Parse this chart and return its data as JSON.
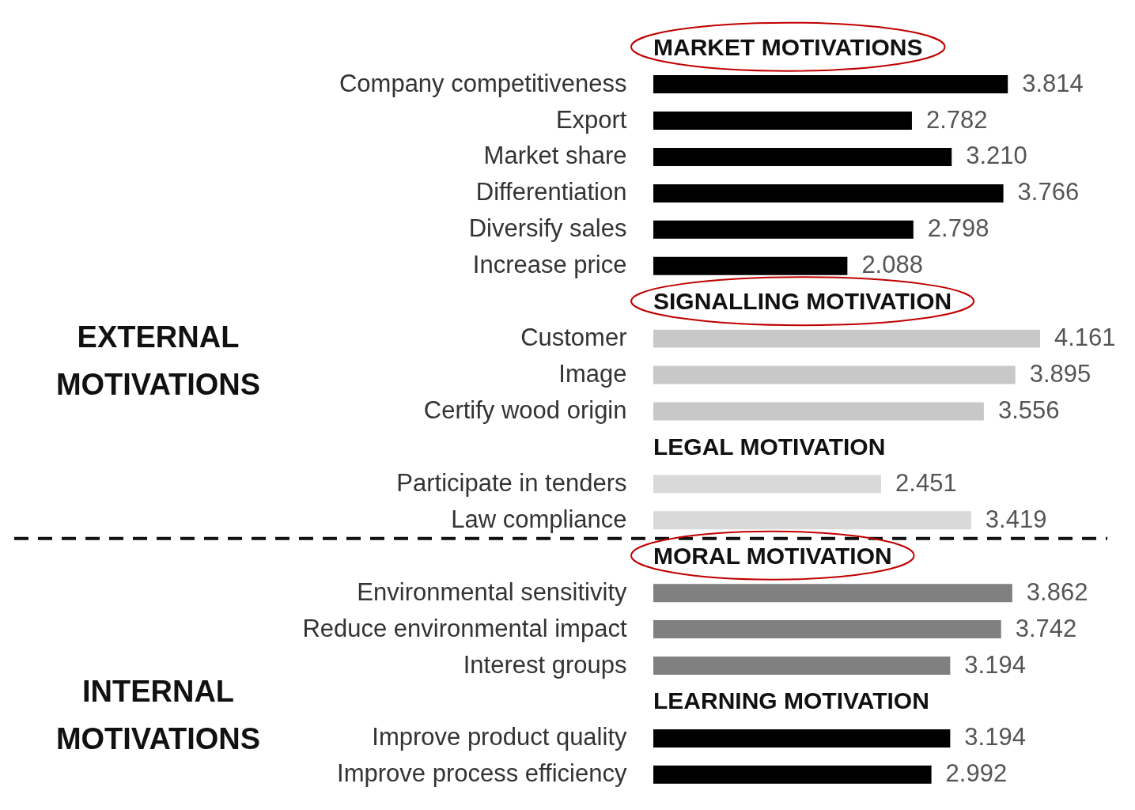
{
  "chart_data": {
    "type": "bar",
    "orientation": "horizontal",
    "categories": [
      "Company competitiveness",
      "Export",
      "Market share",
      "Differentiation",
      "Diversify sales",
      "Increase price",
      "Customer",
      "Image",
      "Certify wood origin",
      "Participate in tenders",
      "Law compliance",
      "Environmental sensitivity",
      "Reduce environmental impact",
      "Interest groups",
      "Improve product quality",
      "Improve process efficiency"
    ],
    "series": [
      {
        "name": "MARKET MOTIVATIONS",
        "color": "#000000",
        "values": [
          3.814,
          2.782,
          3.21,
          3.766,
          2.798,
          2.088,
          null,
          null,
          null,
          null,
          null,
          null,
          null,
          null,
          null,
          null
        ],
        "value_labels": [
          "3.814",
          "2.782",
          "3.210",
          "3.766",
          "2.798",
          "2.088",
          null,
          null,
          null,
          null,
          null,
          null,
          null,
          null,
          null,
          null
        ]
      },
      {
        "name": "SIGNALLING MOTIVATION",
        "color": "#c8c8c8",
        "values": [
          null,
          null,
          null,
          null,
          null,
          null,
          4.161,
          3.895,
          3.556,
          null,
          null,
          null,
          null,
          null,
          null,
          null
        ],
        "value_labels": [
          null,
          null,
          null,
          null,
          null,
          null,
          "4.161",
          "3.895",
          "3.556",
          null,
          null,
          null,
          null,
          null,
          null,
          null
        ]
      },
      {
        "name": "LEGAL MOTIVATION",
        "color": "#d9d9d9",
        "values": [
          null,
          null,
          null,
          null,
          null,
          null,
          null,
          null,
          null,
          2.451,
          3.419,
          null,
          null,
          null,
          null,
          null
        ],
        "value_labels": [
          null,
          null,
          null,
          null,
          null,
          null,
          null,
          null,
          null,
          "2.451",
          "3.419",
          null,
          null,
          null,
          null,
          null
        ]
      },
      {
        "name": "MORAL MOTIVATION",
        "color": "#808080",
        "values": [
          null,
          null,
          null,
          null,
          null,
          null,
          null,
          null,
          null,
          null,
          null,
          3.862,
          3.742,
          3.194,
          null,
          null
        ],
        "value_labels": [
          null,
          null,
          null,
          null,
          null,
          null,
          null,
          null,
          null,
          null,
          null,
          "3.862",
          "3.742",
          "3.194",
          null,
          null
        ]
      },
      {
        "name": "LEARNING MOTIVATION",
        "color": "#000000",
        "values": [
          null,
          null,
          null,
          null,
          null,
          null,
          null,
          null,
          null,
          null,
          null,
          null,
          null,
          null,
          3.194,
          2.992
        ],
        "value_labels": [
          null,
          null,
          null,
          null,
          null,
          null,
          null,
          null,
          null,
          null,
          null,
          null,
          null,
          null,
          "3.194",
          "2.992"
        ]
      }
    ],
    "annotations": [
      "EXTERNAL MOTIVATIONS",
      "INTERNAL MOTIVATIONS"
    ]
  }
}
